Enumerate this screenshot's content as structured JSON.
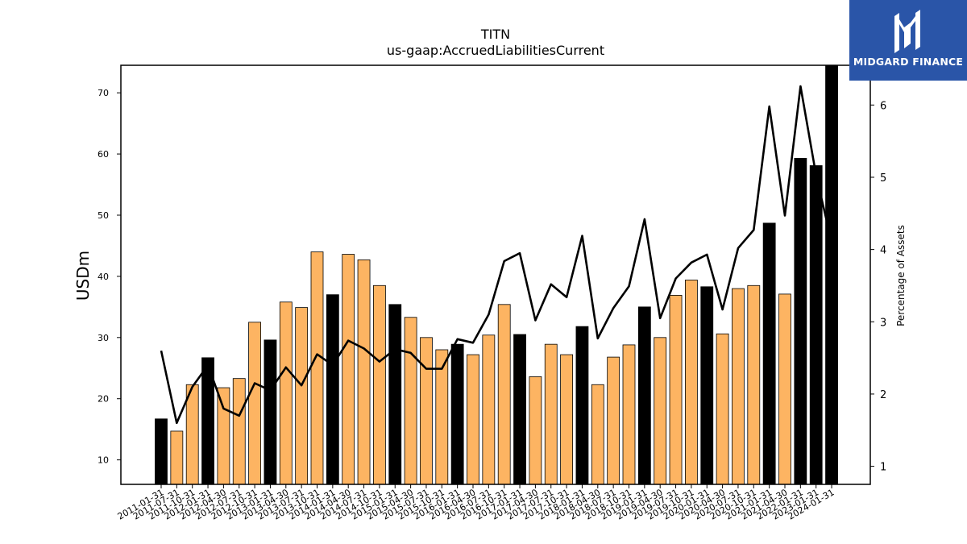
{
  "logo": {
    "text": "MIDGARD FINANCE"
  },
  "colors": {
    "annual_bar": "#000000",
    "quarter_bar": "#fdb462",
    "line": "#000000",
    "logo_bg": "#2a55a8"
  },
  "chart_data": {
    "type": "bar",
    "title": "TITN",
    "subtitle": "us-gaap:AccruedLiabilitiesCurrent",
    "ylabel": "USDm",
    "y2label": "Percentage of Assets",
    "ylim": [
      6,
      74.5
    ],
    "y2lim": [
      0.75,
      6.55
    ],
    "yticks": [
      10,
      20,
      30,
      40,
      50,
      60,
      70
    ],
    "y2ticks": [
      1,
      2,
      3,
      4,
      5,
      6
    ],
    "categories": [
      "2011-01-31",
      "2011-07-31",
      "2011-10-31",
      "2012-01-31",
      "2012-04-30",
      "2012-07-31",
      "2012-10-31",
      "2013-01-31",
      "2013-04-30",
      "2013-07-31",
      "2013-10-31",
      "2014-01-31",
      "2014-04-30",
      "2014-07-31",
      "2014-10-31",
      "2015-01-31",
      "2015-04-30",
      "2015-07-31",
      "2015-10-31",
      "2016-01-31",
      "2016-04-30",
      "2016-07-31",
      "2016-10-31",
      "2017-01-31",
      "2017-04-30",
      "2017-07-31",
      "2017-10-31",
      "2018-01-31",
      "2018-04-30",
      "2018-07-31",
      "2018-10-31",
      "2019-01-31",
      "2019-04-30",
      "2019-07-31",
      "2019-10-31",
      "2020-01-31",
      "2020-04-30",
      "2020-07-31",
      "2020-10-31",
      "2021-01-31",
      "2021-04-30",
      "2022-01-31",
      "2023-01-31",
      "2024-01-31"
    ],
    "series": [
      {
        "kind": "bar",
        "values": [
          16.7,
          14.7,
          22.3,
          26.7,
          21.8,
          23.3,
          32.5,
          29.6,
          35.8,
          34.9,
          44.0,
          37.0,
          43.6,
          42.7,
          38.5,
          35.4,
          33.3,
          30.0,
          28.0,
          28.9,
          27.2,
          30.4,
          35.4,
          30.5,
          23.6,
          28.9,
          27.2,
          31.8,
          22.3,
          26.8,
          28.8,
          35.0,
          30.0,
          36.9,
          39.4,
          38.3,
          30.6,
          38.0,
          38.5,
          48.7,
          37.1,
          59.3,
          58.1,
          74.5
        ],
        "annual": [
          true,
          false,
          false,
          true,
          false,
          false,
          false,
          true,
          false,
          false,
          false,
          true,
          false,
          false,
          false,
          true,
          false,
          false,
          false,
          true,
          false,
          false,
          false,
          true,
          false,
          false,
          false,
          true,
          false,
          false,
          false,
          true,
          false,
          false,
          false,
          true,
          false,
          false,
          false,
          true,
          false,
          true,
          true,
          true
        ]
      },
      {
        "kind": "line",
        "axis": "right",
        "values": [
          2.6,
          1.6,
          2.1,
          2.4,
          1.8,
          1.7,
          2.15,
          2.05,
          2.37,
          2.12,
          2.55,
          2.4,
          2.74,
          2.63,
          2.45,
          2.62,
          2.57,
          2.35,
          2.35,
          2.76,
          2.71,
          3.1,
          3.84,
          3.95,
          3.02,
          3.52,
          3.34,
          4.19,
          2.77,
          3.19,
          3.49,
          4.42,
          3.05,
          3.6,
          3.82,
          3.93,
          3.17,
          4.02,
          4.27,
          5.98,
          4.47,
          6.26,
          5.03,
          4.1
        ]
      }
    ]
  }
}
